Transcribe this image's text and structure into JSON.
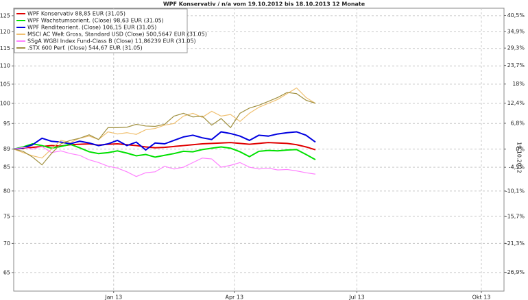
{
  "chart_data": {
    "type": "line",
    "title": "WPF Konservativ / n/a vom 19.10.2012 bis 18.10.2013 12 Monate",
    "side_label": "19.10.2012",
    "x": [
      0,
      1,
      2,
      3,
      4,
      5,
      6,
      7,
      8,
      9,
      10,
      11,
      12,
      13,
      14,
      15,
      16,
      17,
      18,
      19,
      20,
      21,
      22,
      23,
      24,
      25,
      26,
      27,
      28,
      29,
      30,
      31,
      32
    ],
    "xlim": [
      0,
      52
    ],
    "xticks": [
      {
        "value": 10.6,
        "label": "Jan 13"
      },
      {
        "value": 23.4,
        "label": "Apr 13"
      },
      {
        "value": 36.4,
        "label": "Jul 13"
      },
      {
        "value": 49.6,
        "label": "Okt 13"
      }
    ],
    "ylim": [
      62,
      127.4
    ],
    "ylog": true,
    "yticks": [
      65,
      70,
      75,
      80,
      85,
      89,
      95,
      100,
      105,
      110,
      115,
      120,
      125
    ],
    "y2lim": [
      -30.3,
      43.1
    ],
    "y2_scale": "log-percent",
    "y2ticks": [
      {
        "value": 40.5,
        "label": "40,5%"
      },
      {
        "value": 34.9,
        "label": "34,9%"
      },
      {
        "value": 29.3,
        "label": "29,3%"
      },
      {
        "value": 23.7,
        "label": "23,7%"
      },
      {
        "value": 18,
        "label": "18%"
      },
      {
        "value": 12.4,
        "label": "12,4%"
      },
      {
        "value": 6.8,
        "label": "6,8%"
      },
      {
        "value": 0,
        "label": "0%"
      },
      {
        "value": -4.5,
        "label": "-4,5%"
      },
      {
        "value": -10.1,
        "label": "-10,1%"
      },
      {
        "value": -15.7,
        "label": "-15,7%"
      },
      {
        "value": -21.3,
        "label": "-21,3%"
      },
      {
        "value": -26.9,
        "label": "-26,9%"
      }
    ],
    "grid": true,
    "legend": "top-left",
    "series": [
      {
        "name": "WPF Konservativ 88,85 EUR (31.05)",
        "color": "#e00000",
        "values": [
          89,
          89.2,
          89.4,
          89.6,
          89.8,
          89.7,
          90,
          90.1,
          90.2,
          89.9,
          90.1,
          90.2,
          90,
          89.8,
          89.5,
          89.3,
          89.4,
          89.6,
          89.8,
          90,
          90.2,
          90.3,
          90.4,
          90.5,
          90.3,
          90.1,
          90.3,
          90.5,
          90.4,
          90.3,
          90,
          89.5,
          88.85
        ]
      },
      {
        "name": "WPF Wachstumsorient. (Close) 98,63 EUR (31.05)",
        "color": "#00e000",
        "values": [
          89,
          89.5,
          90.2,
          89.8,
          89.2,
          89.6,
          90.1,
          89.3,
          88.4,
          88,
          88.2,
          88.6,
          88.1,
          87.5,
          87.8,
          87.2,
          87.6,
          88,
          88.5,
          88.4,
          88.9,
          89.2,
          89.5,
          89.2,
          88.4,
          87.3,
          88.5,
          88.7,
          88.6,
          88.8,
          88.9,
          87.8,
          86.63
        ]
      },
      {
        "name": "WPF Renditeorient. (Close) 106,15 EUR (31.05)",
        "color": "#0000e0",
        "values": [
          89,
          89.3,
          90,
          91.5,
          90.8,
          90.6,
          90.2,
          90.8,
          90.4,
          89.8,
          90.2,
          91,
          89.8,
          90.6,
          88.8,
          90.4,
          90.2,
          91,
          91.8,
          92.2,
          91.6,
          91.2,
          93,
          92.6,
          92,
          91,
          92.2,
          92,
          92.5,
          92.8,
          93,
          92.2,
          90.6
        ]
      },
      {
        "name": "MSCI AC Welt Gross, Standard USD (Close) 500,5647 EUR (31.05)",
        "color": "#f0c070",
        "values": [
          89,
          88.2,
          87.5,
          87,
          89,
          91,
          90.5,
          91.5,
          92,
          91.2,
          93,
          92.5,
          92.8,
          92.4,
          93.5,
          93.8,
          94.6,
          95,
          96.8,
          97.5,
          96.5,
          98,
          96.8,
          97.2,
          95.5,
          97.5,
          99,
          100,
          101,
          102.5,
          104,
          101.5,
          100
        ]
      },
      {
        "name": "SSgA WGBI Index Fund-Class B (Close) 11,86239 EUR (31.05)",
        "color": "#ff80ff",
        "values": [
          89,
          89.4,
          89,
          89.6,
          88.2,
          88.6,
          88,
          87.6,
          86.6,
          86,
          85.2,
          84.8,
          84,
          83,
          83.8,
          84,
          85.2,
          84.6,
          85,
          86,
          87,
          86.8,
          85,
          85.4,
          86,
          85,
          84.6,
          84.8,
          84.4,
          84.5,
          84.2,
          83.8,
          83.5
        ]
      },
      {
        "name": ".STX 600 Perf. (Close) 544,67 EUR (31.05)",
        "color": "#a09040",
        "values": [
          89,
          88.5,
          87.2,
          85.5,
          88,
          90.2,
          91,
          91.5,
          92.3,
          91.2,
          94,
          94,
          94.1,
          94.8,
          94.4,
          94.3,
          94.8,
          96.8,
          97.5,
          96.6,
          96.8,
          94.6,
          96.2,
          94,
          97.5,
          98.8,
          99.5,
          100.5,
          101.5,
          102.8,
          102.5,
          100.8,
          100
        ]
      }
    ]
  }
}
